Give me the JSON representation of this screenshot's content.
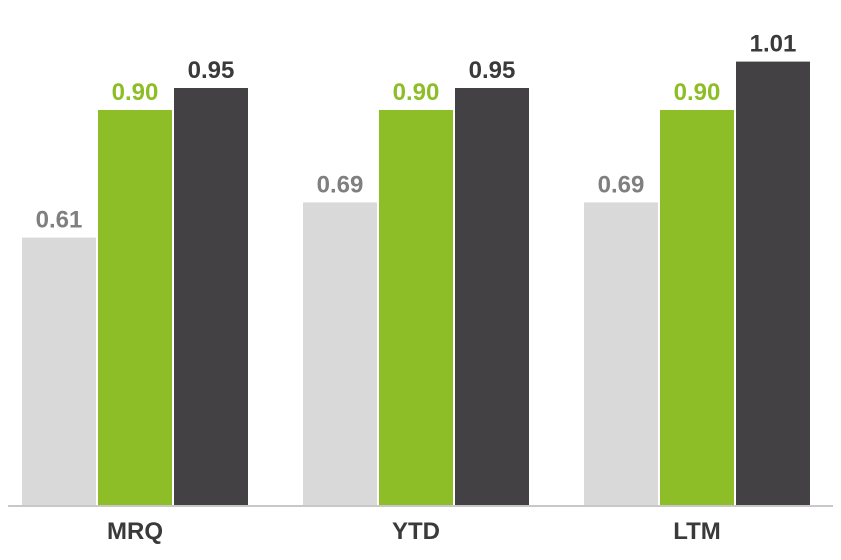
{
  "chart_data": {
    "type": "bar",
    "categories": [
      "MRQ",
      "YTD",
      "LTM"
    ],
    "series": [
      {
        "values": [
          0.61,
          0.69,
          0.69
        ],
        "color": "#d9d9d9",
        "label_color": "#7f7f7f"
      },
      {
        "values": [
          0.9,
          0.9,
          0.9
        ],
        "color": "#8dbd27",
        "label_color": "#8dbd27"
      },
      {
        "values": [
          0.95,
          0.95,
          1.01
        ],
        "color": "#434144",
        "label_color": "#3a3a3a"
      }
    ],
    "data_labels": [
      [
        "0.61",
        "0.69",
        "0.69"
      ],
      [
        "0.90",
        "0.90",
        "0.90"
      ],
      [
        "0.95",
        "0.95",
        "1.01"
      ]
    ],
    "baseline_color": "#c8c8c8",
    "grid": false,
    "legend": "none"
  }
}
